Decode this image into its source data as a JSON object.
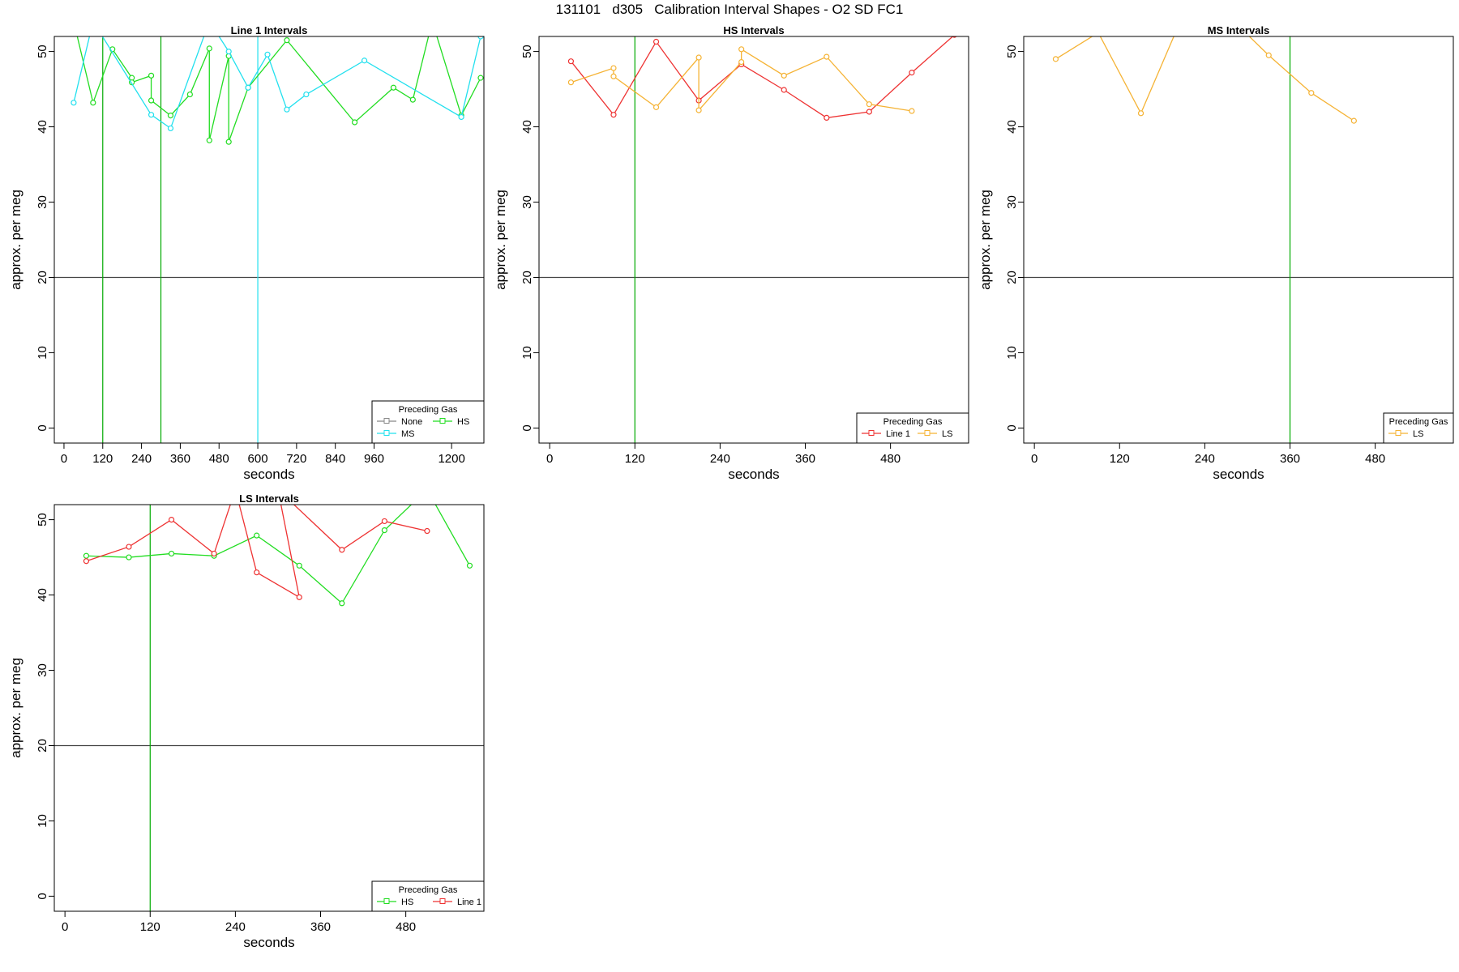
{
  "figure_title": "131101   d305   Calibration Interval Shapes - O2 SD FC1",
  "chart_data": [
    {
      "type": "line",
      "title": "Line 1 Intervals",
      "xlabel": "seconds",
      "ylabel": "approx. per meg",
      "xlim": [
        -30,
        1300
      ],
      "ylim": [
        -2,
        52
      ],
      "xticks": [
        0,
        120,
        240,
        360,
        480,
        600,
        720,
        840,
        960,
        1200
      ],
      "yticks": [
        0,
        10,
        20,
        30,
        40,
        50
      ],
      "hlines": [
        {
          "y": 20,
          "color": "#444444"
        }
      ],
      "vlines": [
        {
          "x": 120,
          "color": "#00aa00"
        },
        {
          "x": 300,
          "color": "#00aa00"
        },
        {
          "x": 600,
          "color": "#22e0ee"
        }
      ],
      "legend": {
        "title": "Preceding Gas",
        "position": "bottom-right",
        "columns": 2,
        "entries": [
          {
            "name": "None",
            "color": "#888888"
          },
          {
            "name": "HS",
            "color": "#22dd22"
          },
          {
            "name": "MS",
            "color": "#22e0ee"
          }
        ]
      },
      "series": [
        {
          "name": "HS",
          "color": "#22dd22",
          "x": [
            30,
            90,
            150,
            210,
            210,
            270,
            270,
            330,
            390,
            450,
            450,
            510,
            510,
            570,
            690,
            900,
            1020,
            1080,
            1140,
            1230,
            1290
          ],
          "y": [
            54,
            43.2,
            50.3,
            46.5,
            45.9,
            46.8,
            43.5,
            41.5,
            44.3,
            50.4,
            38.2,
            49.4,
            38.0,
            45.2,
            51.5,
            40.6,
            45.2,
            43.6,
            54,
            41.5,
            46.5
          ]
        },
        {
          "name": "MS",
          "color": "#22e0ee",
          "x": [
            30,
            90,
            270,
            330,
            450,
            510,
            570,
            630,
            690,
            750,
            930,
            1230,
            1290
          ],
          "y": [
            43.2,
            54,
            41.6,
            39.8,
            54,
            50.0,
            45.2,
            49.6,
            42.3,
            44.3,
            48.8,
            41.3,
            52
          ]
        }
      ]
    },
    {
      "type": "line",
      "title": "HS Intervals",
      "xlabel": "seconds",
      "ylabel": "approx. per meg",
      "xlim": [
        -15,
        590
      ],
      "ylim": [
        -2,
        52
      ],
      "xticks": [
        0,
        120,
        240,
        360,
        480
      ],
      "yticks": [
        0,
        10,
        20,
        30,
        40,
        50
      ],
      "hlines": [
        {
          "y": 20,
          "color": "#444444"
        }
      ],
      "vlines": [
        {
          "x": 120,
          "color": "#00aa00"
        }
      ],
      "legend": {
        "title": "Preceding Gas",
        "position": "bottom-right",
        "columns": 2,
        "entries": [
          {
            "name": "Line 1",
            "color": "#ee3333"
          },
          {
            "name": "LS",
            "color": "#f5b335"
          }
        ]
      },
      "series": [
        {
          "name": "Line 1",
          "color": "#ee3333",
          "x": [
            30,
            90,
            150,
            210,
            270,
            330,
            390,
            450,
            510,
            570
          ],
          "y": [
            48.7,
            41.6,
            51.3,
            43.5,
            48.3,
            44.9,
            41.2,
            42.0,
            47.2,
            52.2
          ]
        },
        {
          "name": "LS",
          "color": "#f5b335",
          "x": [
            30,
            90,
            90,
            150,
            210,
            210,
            270,
            270,
            330,
            390,
            450,
            510
          ],
          "y": [
            45.9,
            47.8,
            46.7,
            42.6,
            49.2,
            42.2,
            48.6,
            50.3,
            46.8,
            49.3,
            43.0,
            42.1
          ]
        }
      ]
    },
    {
      "type": "line",
      "title": "MS Intervals",
      "xlabel": "seconds",
      "ylabel": "approx. per meg",
      "xlim": [
        -15,
        590
      ],
      "ylim": [
        -2,
        52
      ],
      "xticks": [
        0,
        120,
        240,
        360,
        480
      ],
      "yticks": [
        0,
        10,
        20,
        30,
        40,
        50
      ],
      "hlines": [
        {
          "y": 20,
          "color": "#444444"
        }
      ],
      "vlines": [
        {
          "x": 360,
          "color": "#00aa00"
        }
      ],
      "legend": {
        "title": "Preceding Gas",
        "position": "bottom-right",
        "columns": 1,
        "entries": [
          {
            "name": "LS",
            "color": "#f5b335"
          }
        ]
      },
      "series": [
        {
          "name": "LS",
          "color": "#f5b335",
          "x": [
            30,
            90,
            150,
            210,
            270,
            330,
            390,
            450
          ],
          "y": [
            49.0,
            52.5,
            41.8,
            55,
            55,
            49.5,
            44.5,
            40.8
          ]
        }
      ]
    },
    {
      "type": "line",
      "title": "LS Intervals",
      "xlabel": "seconds",
      "ylabel": "approx. per meg",
      "xlim": [
        -15,
        590
      ],
      "ylim": [
        -2,
        52
      ],
      "xticks": [
        0,
        120,
        240,
        360,
        480
      ],
      "yticks": [
        0,
        10,
        20,
        30,
        40,
        50
      ],
      "hlines": [
        {
          "y": 20,
          "color": "#444444"
        }
      ],
      "vlines": [
        {
          "x": 120,
          "color": "#00aa00"
        }
      ],
      "legend": {
        "title": "Preceding Gas",
        "position": "bottom-right",
        "columns": 2,
        "entries": [
          {
            "name": "HS",
            "color": "#22dd22"
          },
          {
            "name": "Line 1",
            "color": "#ee3333"
          }
        ]
      },
      "series": [
        {
          "name": "HS",
          "color": "#22dd22",
          "x": [
            30,
            90,
            150,
            210,
            270,
            330,
            390,
            450,
            510,
            570
          ],
          "y": [
            45.2,
            45.0,
            45.5,
            45.2,
            47.9,
            43.9,
            38.9,
            48.6,
            54,
            43.9
          ]
        },
        {
          "name": "Line 1",
          "color": "#ee3333",
          "x": [
            30,
            90,
            150,
            210,
            240,
            270,
            330,
            300,
            390,
            450,
            510
          ],
          "y": [
            44.5,
            46.4,
            50.0,
            45.5,
            54,
            43.0,
            39.7,
            54,
            46.0,
            49.8,
            48.5
          ]
        }
      ]
    }
  ]
}
